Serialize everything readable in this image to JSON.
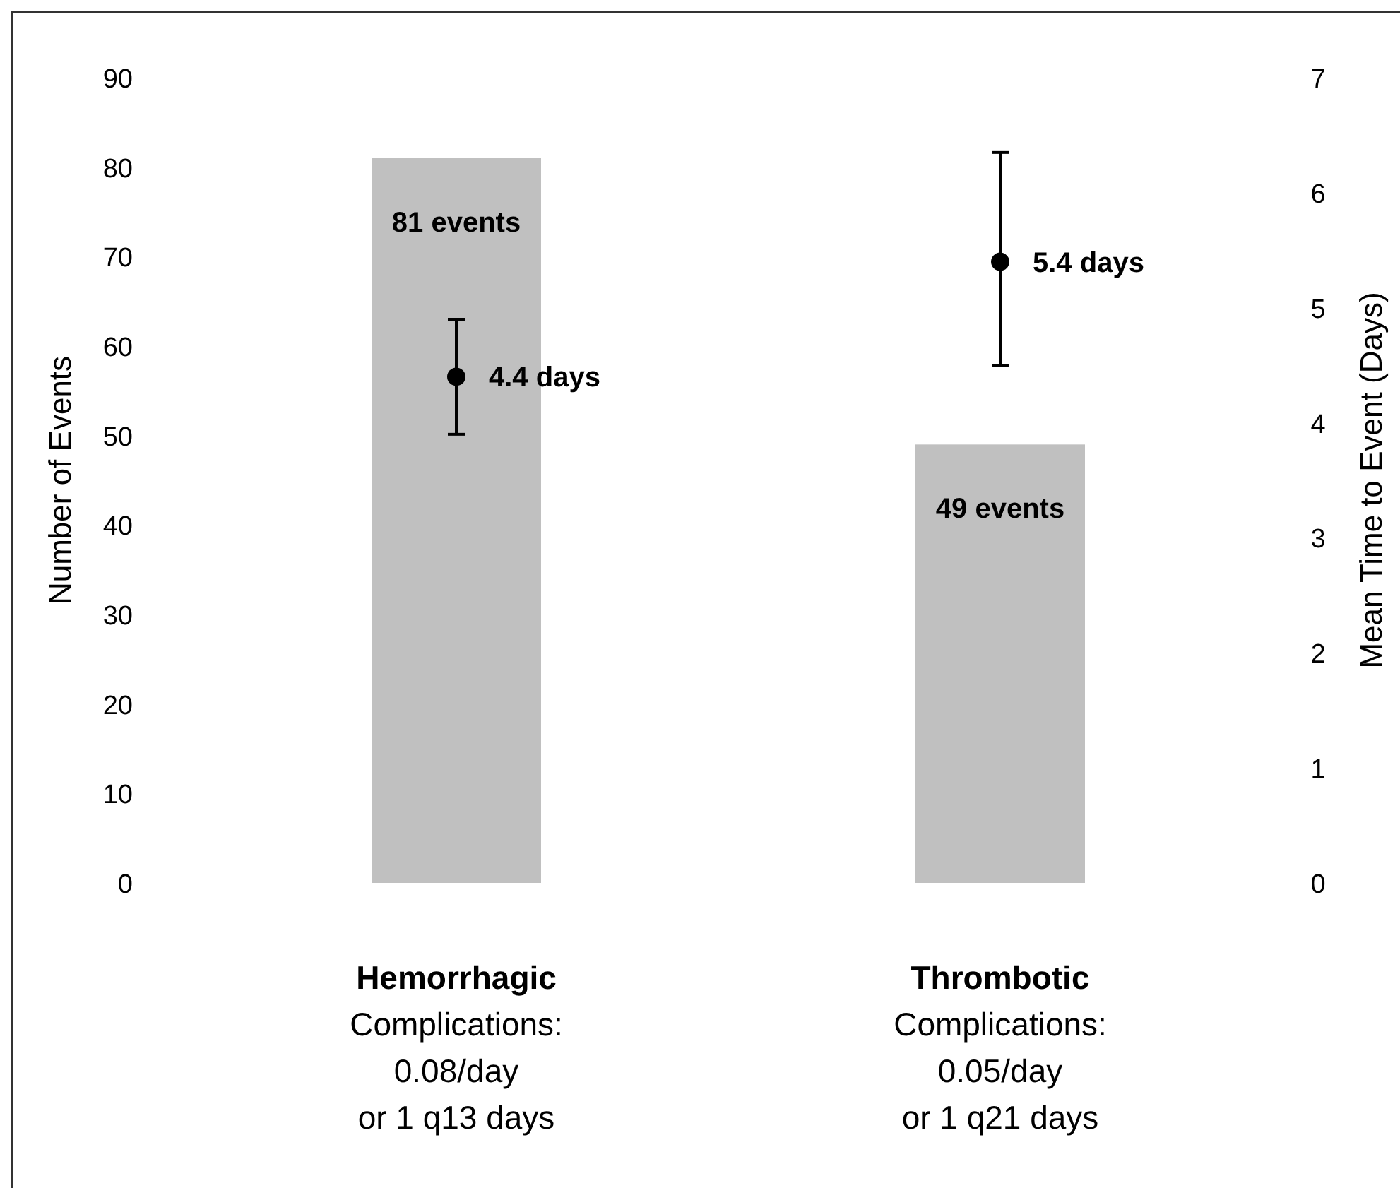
{
  "chart_data": {
    "type": "bar",
    "ylabel": "Number of Events",
    "y2label": "Mean Time to Event (Days)",
    "categories": [
      "Hemorrhagic\nComplications:\n0.08/day\nor 1 q13 days",
      "Thrombotic\nComplications:\n0.05/day\nor 1 q21 days"
    ],
    "series": [
      {
        "color": "#c0c0c0",
        "values": [
          81,
          49
        ],
        "value_labels": [
          "81 events",
          "49 events"
        ]
      },
      {
        "type": "scatter",
        "axis": "y2",
        "color": "#000000",
        "values": [
          4.4,
          5.4
        ],
        "errors": [
          [
            3.9,
            4.9
          ],
          [
            4.5,
            6.35
          ]
        ],
        "value_labels": [
          "4.4 days",
          "5.4 days"
        ]
      }
    ],
    "ylim": [
      0,
      90
    ],
    "yticks": [
      0,
      10,
      20,
      30,
      40,
      50,
      60,
      70,
      80,
      90
    ],
    "y2lim": [
      0,
      7
    ],
    "y2ticks": [
      0,
      1,
      2,
      3,
      4,
      5,
      6,
      7
    ],
    "marker": "circle",
    "grid": false
  }
}
